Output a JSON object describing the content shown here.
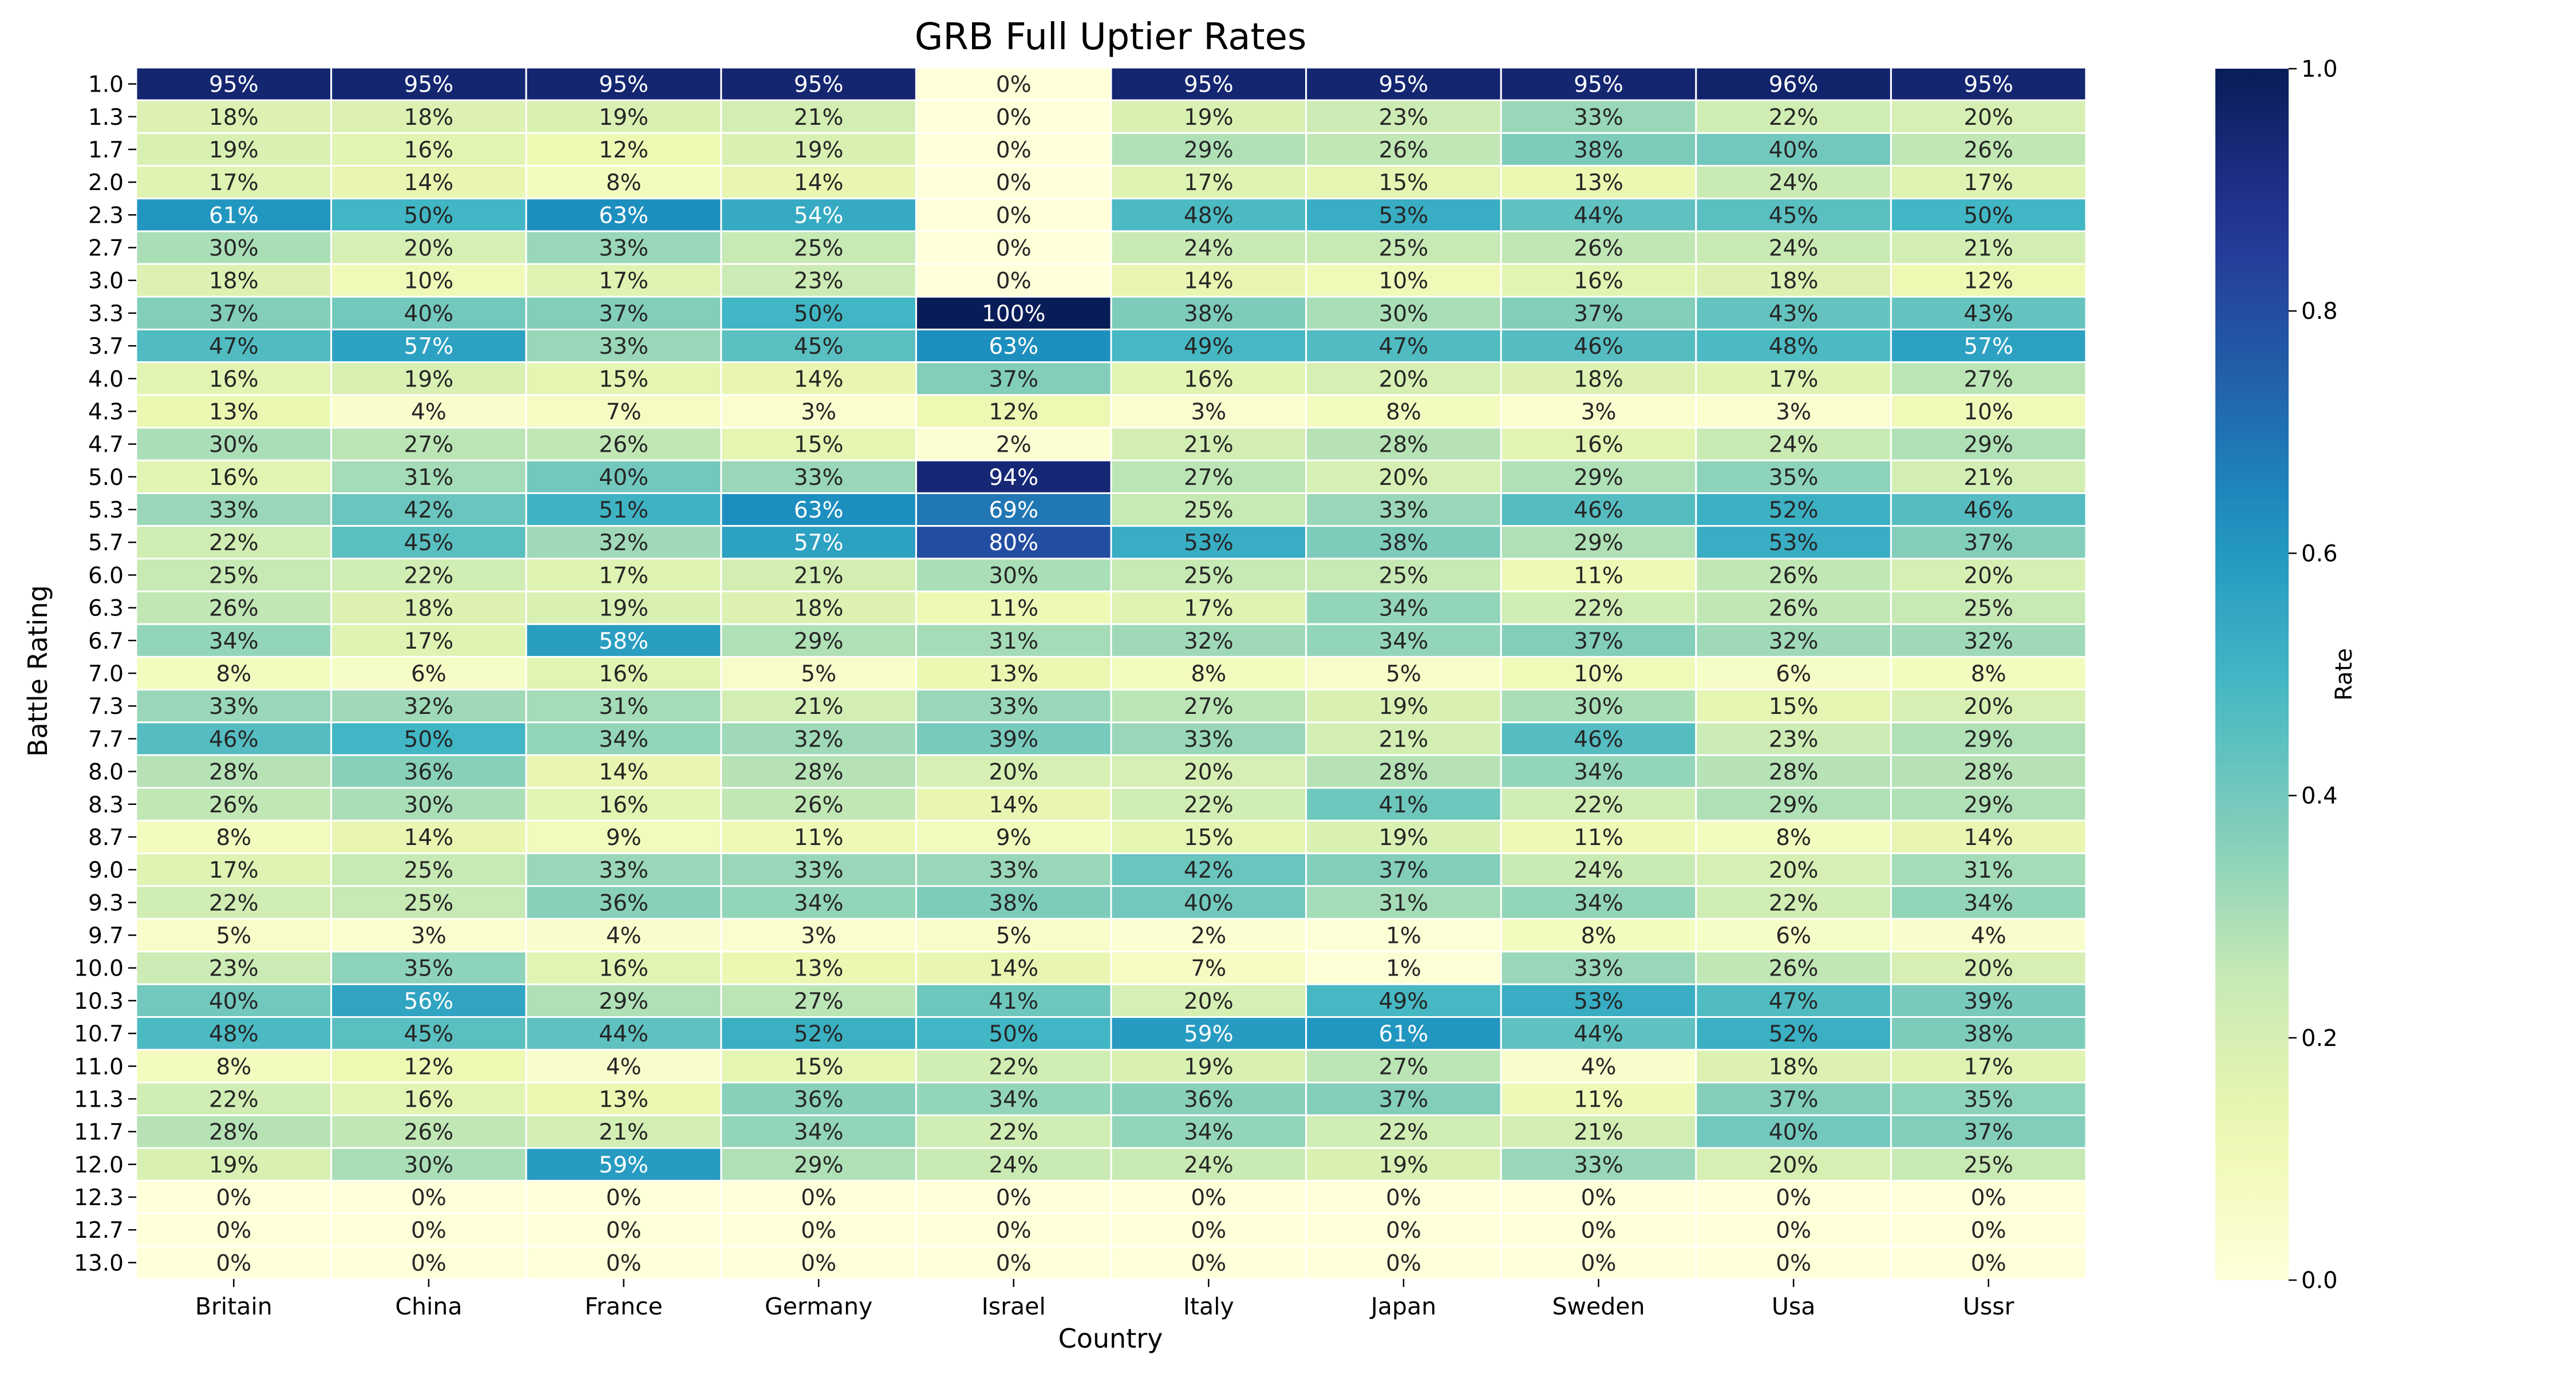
{
  "chart_data": {
    "type": "heatmap",
    "title": "GRB Full Uptier Rates",
    "xlabel": "Country",
    "ylabel": "Battle Rating",
    "colorbar_label": "Rate",
    "colormap": "YlGnBu",
    "value_range": [
      0,
      1
    ],
    "colorbar_ticks": [
      "0.0",
      "0.2",
      "0.4",
      "0.6",
      "0.8",
      "1.0"
    ],
    "columns": [
      "Britain",
      "China",
      "France",
      "Germany",
      "Israel",
      "Italy",
      "Japan",
      "Sweden",
      "Usa",
      "Ussr"
    ],
    "rows": [
      "1.0",
      "1.3",
      "1.7",
      "2.0",
      "2.3",
      "2.7",
      "3.0",
      "3.3",
      "3.7",
      "4.0",
      "4.3",
      "4.7",
      "5.0",
      "5.3",
      "5.7",
      "6.0",
      "6.3",
      "6.7",
      "7.0",
      "7.3",
      "7.7",
      "8.0",
      "8.3",
      "8.7",
      "9.0",
      "9.3",
      "9.7",
      "10.0",
      "10.3",
      "10.7",
      "11.0",
      "11.3",
      "11.7",
      "12.0",
      "12.3",
      "12.7",
      "13.0"
    ],
    "values": [
      [
        95,
        95,
        95,
        95,
        0,
        95,
        95,
        95,
        96,
        95
      ],
      [
        18,
        18,
        19,
        21,
        0,
        19,
        23,
        33,
        22,
        20
      ],
      [
        19,
        16,
        12,
        19,
        0,
        29,
        26,
        38,
        40,
        26
      ],
      [
        17,
        14,
        8,
        14,
        0,
        17,
        15,
        13,
        24,
        17
      ],
      [
        61,
        50,
        63,
        54,
        0,
        48,
        53,
        44,
        45,
        50
      ],
      [
        30,
        20,
        33,
        25,
        0,
        24,
        25,
        26,
        24,
        21
      ],
      [
        18,
        10,
        17,
        23,
        0,
        14,
        10,
        16,
        18,
        12
      ],
      [
        37,
        40,
        37,
        50,
        100,
        38,
        30,
        37,
        43,
        43
      ],
      [
        47,
        57,
        33,
        45,
        63,
        49,
        47,
        46,
        48,
        57
      ],
      [
        16,
        19,
        15,
        14,
        37,
        16,
        20,
        18,
        17,
        27
      ],
      [
        13,
        4,
        7,
        3,
        12,
        3,
        8,
        3,
        3,
        10
      ],
      [
        30,
        27,
        26,
        15,
        2,
        21,
        28,
        16,
        24,
        29
      ],
      [
        16,
        31,
        40,
        33,
        94,
        27,
        20,
        29,
        35,
        21
      ],
      [
        33,
        42,
        51,
        63,
        69,
        25,
        33,
        46,
        52,
        46
      ],
      [
        22,
        45,
        32,
        57,
        80,
        53,
        38,
        29,
        53,
        37
      ],
      [
        25,
        22,
        17,
        21,
        30,
        25,
        25,
        11,
        26,
        20
      ],
      [
        26,
        18,
        19,
        18,
        11,
        17,
        34,
        22,
        26,
        25
      ],
      [
        34,
        17,
        58,
        29,
        31,
        32,
        34,
        37,
        32,
        32
      ],
      [
        8,
        6,
        16,
        5,
        13,
        8,
        5,
        10,
        6,
        8
      ],
      [
        33,
        32,
        31,
        21,
        33,
        27,
        19,
        30,
        15,
        20
      ],
      [
        46,
        50,
        34,
        32,
        39,
        33,
        21,
        46,
        23,
        29
      ],
      [
        28,
        36,
        14,
        28,
        20,
        20,
        28,
        34,
        28,
        28
      ],
      [
        26,
        30,
        16,
        26,
        14,
        22,
        41,
        22,
        29,
        29
      ],
      [
        8,
        14,
        9,
        11,
        9,
        15,
        19,
        11,
        8,
        14
      ],
      [
        17,
        25,
        33,
        33,
        33,
        42,
        37,
        24,
        20,
        31
      ],
      [
        22,
        25,
        36,
        34,
        38,
        40,
        31,
        34,
        22,
        34
      ],
      [
        5,
        3,
        4,
        3,
        5,
        2,
        1,
        8,
        6,
        4
      ],
      [
        23,
        35,
        16,
        13,
        14,
        7,
        1,
        33,
        26,
        20
      ],
      [
        40,
        56,
        29,
        27,
        41,
        20,
        49,
        53,
        47,
        39
      ],
      [
        48,
        45,
        44,
        52,
        50,
        59,
        61,
        44,
        52,
        38
      ],
      [
        8,
        12,
        4,
        15,
        22,
        19,
        27,
        4,
        18,
        17
      ],
      [
        22,
        16,
        13,
        36,
        34,
        36,
        37,
        11,
        37,
        35
      ],
      [
        28,
        26,
        21,
        34,
        22,
        34,
        22,
        21,
        40,
        37
      ],
      [
        19,
        30,
        59,
        29,
        24,
        24,
        19,
        33,
        20,
        25
      ],
      [
        0,
        0,
        0,
        0,
        0,
        0,
        0,
        0,
        0,
        0
      ],
      [
        0,
        0,
        0,
        0,
        0,
        0,
        0,
        0,
        0,
        0
      ],
      [
        0,
        0,
        0,
        0,
        0,
        0,
        0,
        0,
        0,
        0
      ]
    ],
    "value_format": "percent"
  }
}
